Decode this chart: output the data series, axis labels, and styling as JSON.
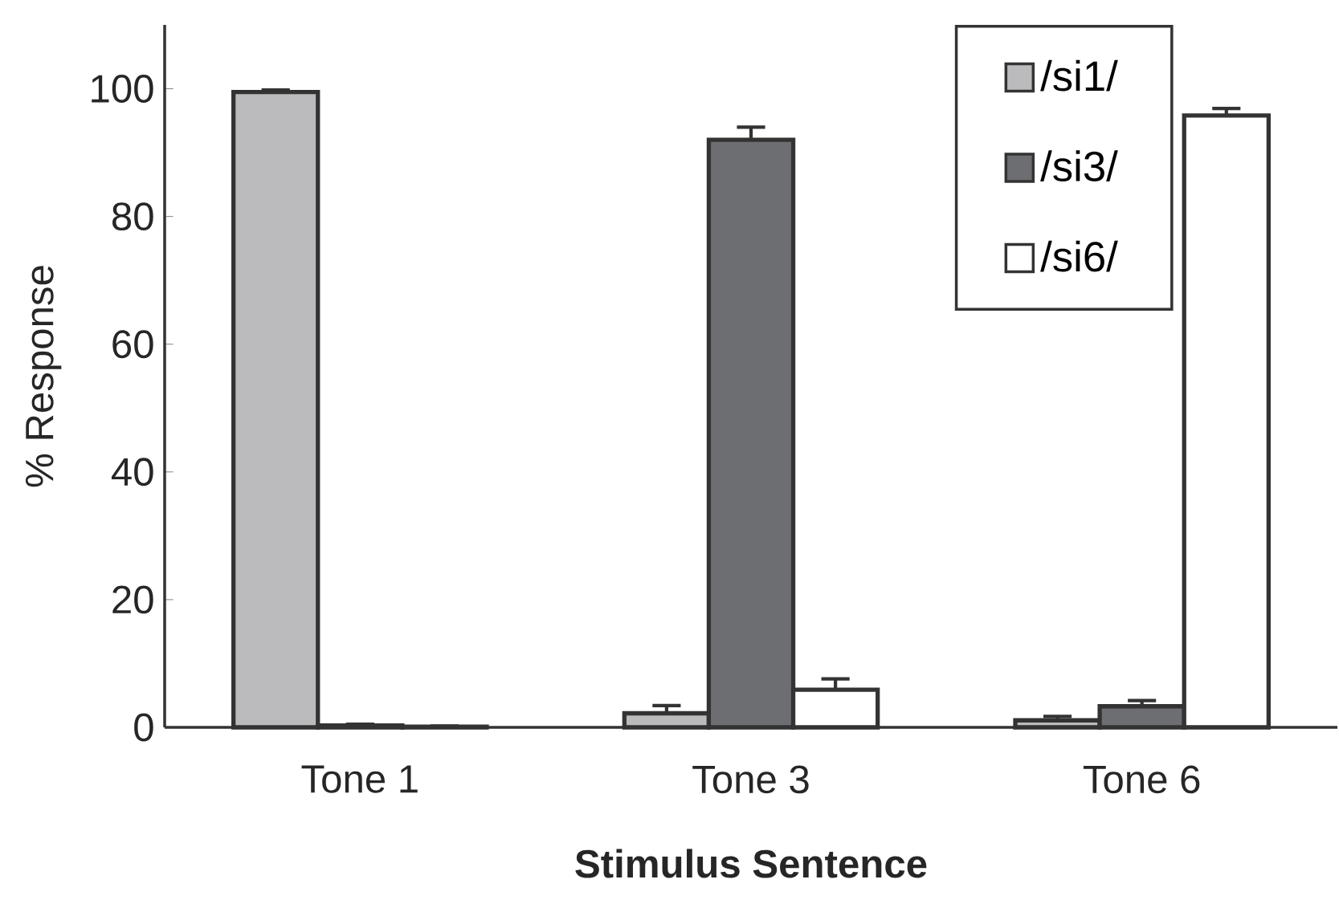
{
  "chart_data": {
    "type": "bar",
    "xlabel": "Stimulus Sentence",
    "ylabel": "% Response",
    "categories": [
      "Tone 1",
      "Tone 3",
      "Tone 6"
    ],
    "series": [
      {
        "name": "/si1/",
        "color": "#bbbbbd",
        "values": [
          99.5,
          2.2,
          1.1
        ],
        "errors": [
          0.3,
          1.2,
          0.6
        ]
      },
      {
        "name": "/si3/",
        "color": "#6d6e72",
        "values": [
          0.3,
          92.0,
          3.3
        ],
        "errors": [
          0.2,
          2.0,
          0.9
        ]
      },
      {
        "name": "/si6/",
        "color": "#ffffff",
        "values": [
          0.1,
          5.9,
          95.8
        ],
        "errors": [
          0.1,
          1.7,
          1.1
        ]
      }
    ],
    "ylim": [
      0,
      110
    ],
    "yticks": [
      0,
      20,
      40,
      60,
      80,
      100
    ],
    "grid": false,
    "legend": "top right"
  }
}
